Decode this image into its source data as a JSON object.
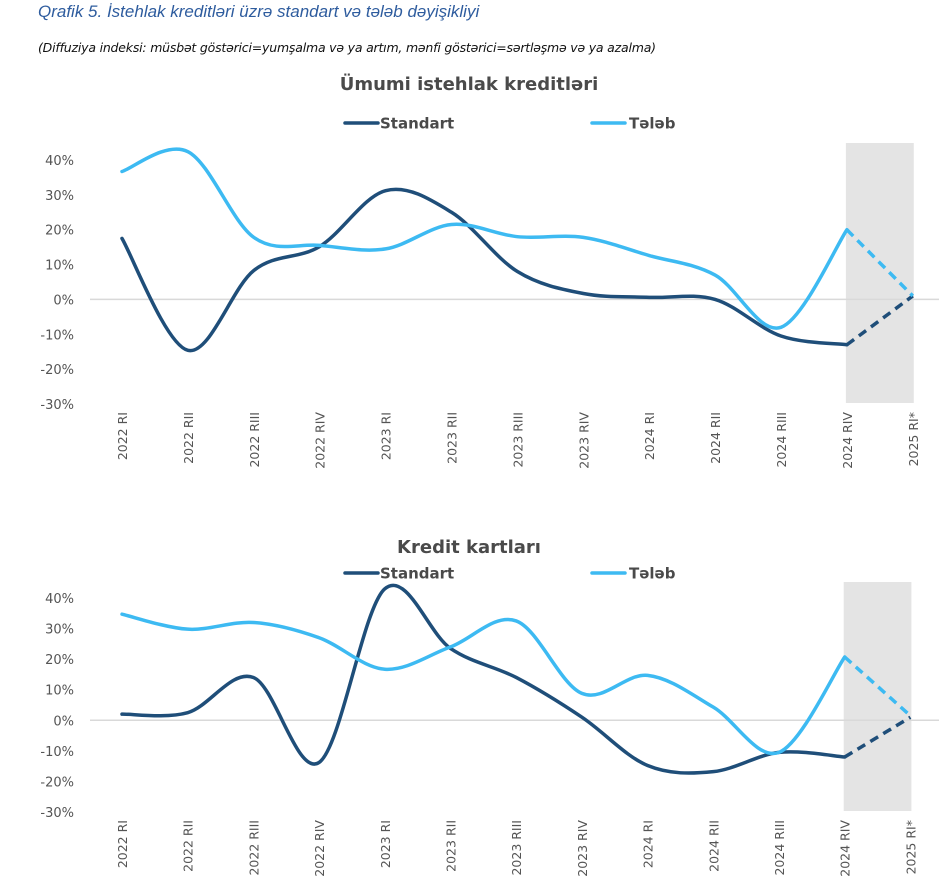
{
  "figure": {
    "title": "Qrafik 5. İstehlak kreditləri üzrə standart və tələb dəyişikliyi",
    "subtitle": "(Diffuziya indeksi: müsbət göstərici=yumşalma və ya artım, mənfi göstərici=sərtləşmə və ya azalma)"
  },
  "colors": {
    "standart": "#1f4e79",
    "teleb": "#3dbaf2",
    "forecast_shade": "#e4e4e4",
    "zero_line": "#d9d9d9"
  },
  "chart_data": [
    {
      "type": "line",
      "title": "Ümumi istehlak kreditləri",
      "xlabel": "",
      "ylabel": "",
      "ylim": [
        -30,
        40
      ],
      "yticks": [
        "40%",
        "30%",
        "20%",
        "10%",
        "0%",
        "-10%",
        "-20%",
        "-30%"
      ],
      "ytick_values": [
        40,
        30,
        20,
        10,
        0,
        -10,
        -20,
        -30
      ],
      "categories": [
        "2022 RI",
        "2022 RII",
        "2022 RIII",
        "2022 RIV",
        "2023 RI",
        "2023 RII",
        "2023 RIII",
        "2023 RIV",
        "2024 RI",
        "2024 RII",
        "2024 RIII",
        "2024 RIV",
        "2025 RI*"
      ],
      "series": [
        {
          "name": "Standart",
          "values": [
            17.5,
            -14.6,
            8.3,
            15.2,
            31.2,
            25,
            8,
            1.7,
            0.6,
            0,
            -10.5,
            -13,
            1
          ]
        },
        {
          "name": "Tələb",
          "values": [
            36.7,
            42.4,
            17.8,
            15.5,
            14.5,
            21.5,
            18,
            17.8,
            12.6,
            7,
            -8,
            20,
            1
          ]
        }
      ],
      "forecast_from_index": 11,
      "shaded_categories": [
        "2024 RIV",
        "2025 RI*"
      ],
      "legend": "top-center",
      "grid": false
    },
    {
      "type": "line",
      "title": "Kredit kartları",
      "xlabel": "",
      "ylabel": "",
      "ylim": [
        -30,
        40
      ],
      "yticks": [
        "40%",
        "30%",
        "20%",
        "10%",
        "0%",
        "-10%",
        "-20%",
        "-30%"
      ],
      "ytick_values": [
        40,
        30,
        20,
        10,
        0,
        -10,
        -20,
        -30
      ],
      "categories": [
        "2022 RI",
        "2022 RII",
        "2022 RIII",
        "2022 RIV",
        "2023 RI",
        "2023 RII",
        "2023 RIII",
        "2023 RIV",
        "2024 RI",
        "2024 RII",
        "2024 RIII",
        "2024 RIV",
        "2025 RI*"
      ],
      "series": [
        {
          "name": "Standart",
          "values": [
            2,
            2.5,
            14,
            -13.8,
            43,
            23.5,
            14,
            1,
            -14.8,
            -16.8,
            -10.5,
            -12,
            1
          ]
        },
        {
          "name": "Tələb",
          "values": [
            34.7,
            29.8,
            32,
            27,
            16.7,
            24,
            32.5,
            8.8,
            14.7,
            4.3,
            -10.5,
            20.7,
            1.5
          ]
        }
      ],
      "forecast_from_index": 11,
      "shaded_categories": [
        "2024 RIV",
        "2025 RI*"
      ],
      "legend": "top-center",
      "grid": false
    }
  ]
}
